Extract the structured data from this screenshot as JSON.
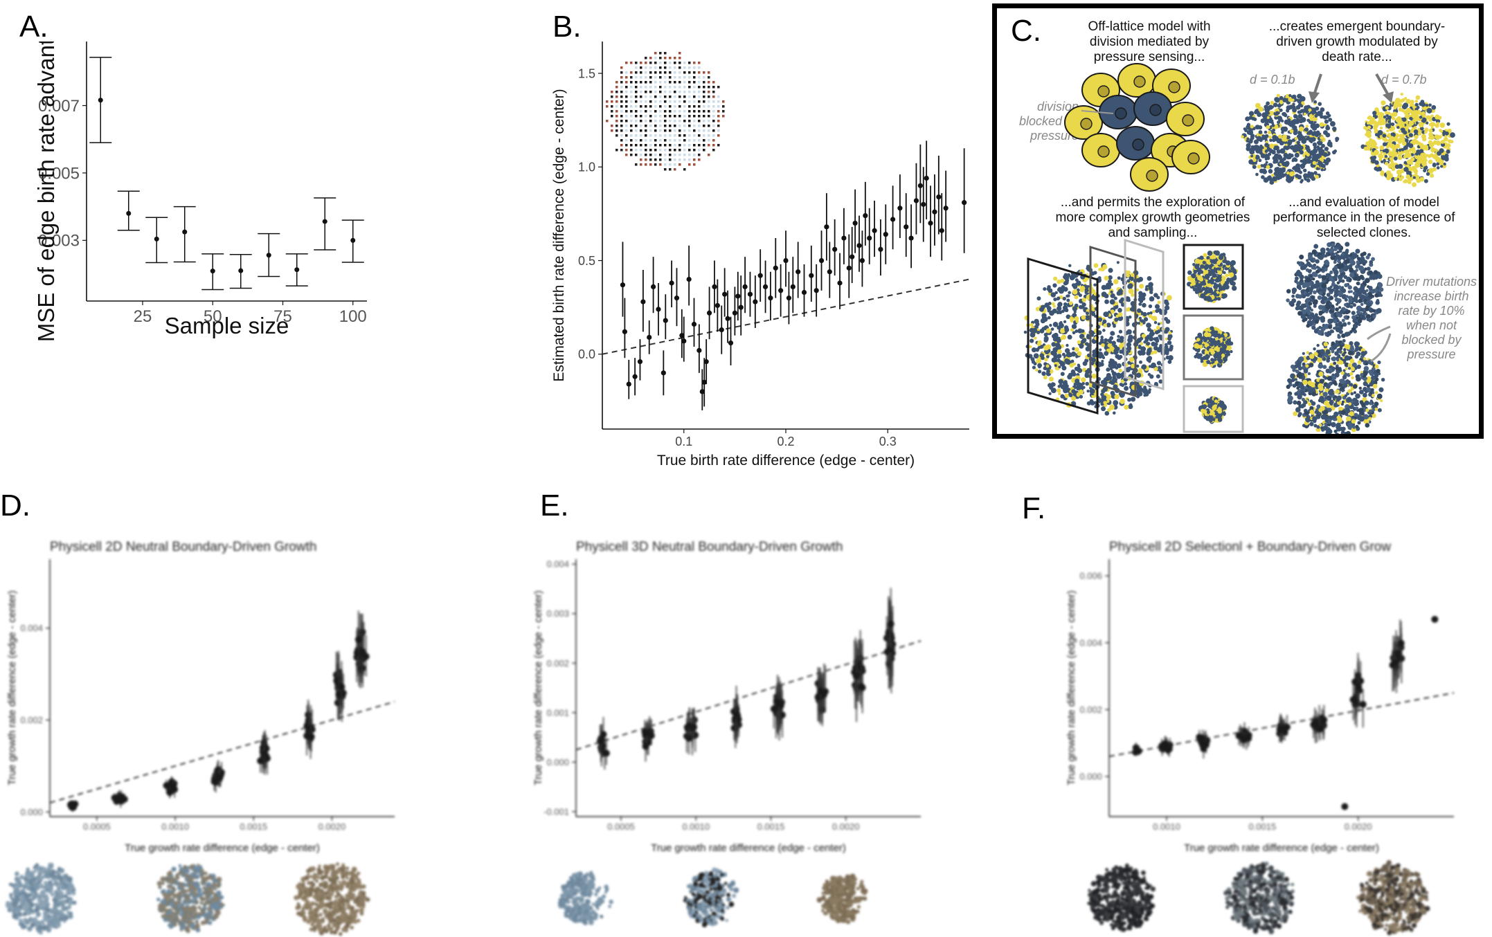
{
  "panel_labels": {
    "a": "A.",
    "b": "B.",
    "c": "C.",
    "d": "D.",
    "e": "E.",
    "f": "F."
  },
  "panel_c": {
    "t1": "Off-lattice model with division mediated by pressure sensing...",
    "t2": "...creates emergent boundary-driven growth modulated by death rate...",
    "t3": "...and permits the exploration of more complex growth geometries and sampling...",
    "t4": "...and evaluation of model performance in the presence of selected clones.",
    "division_note": "division blocked by pressure",
    "d_low": "d = 0.1b",
    "d_high": "d = 0.7b",
    "driver_note": "Driver mutations increase birth rate by 10% when not blocked by pressure",
    "colors": {
      "navy": "#3d5573",
      "yellow": "#e9d84a",
      "outline": "#1a1a1a"
    }
  },
  "chart_data": [
    {
      "panel": "A",
      "type": "scatter",
      "title": "",
      "xlabel": "Sample size",
      "ylabel": "MSE of edge birth rate advantage",
      "xlim": [
        5,
        105
      ],
      "ylim": [
        0.0012,
        0.0089
      ],
      "xticks": [
        25,
        50,
        75,
        100
      ],
      "yticks": [
        0.003,
        0.005,
        0.007
      ],
      "ytick_labels": [
        "0.003",
        "0.005",
        "0.007"
      ],
      "grid": false,
      "points": [
        {
          "x": 10,
          "y": 0.00716,
          "lo": 0.0059,
          "hi": 0.00843
        },
        {
          "x": 20,
          "y": 0.0038,
          "lo": 0.0033,
          "hi": 0.00446
        },
        {
          "x": 30,
          "y": 0.00304,
          "lo": 0.00234,
          "hi": 0.00368
        },
        {
          "x": 40,
          "y": 0.00325,
          "lo": 0.00236,
          "hi": 0.004
        },
        {
          "x": 50,
          "y": 0.00209,
          "lo": 0.00154,
          "hi": 0.0026
        },
        {
          "x": 60,
          "y": 0.0021,
          "lo": 0.00158,
          "hi": 0.00258
        },
        {
          "x": 70,
          "y": 0.00256,
          "lo": 0.00193,
          "hi": 0.0032
        },
        {
          "x": 80,
          "y": 0.00213,
          "lo": 0.00165,
          "hi": 0.0026
        },
        {
          "x": 90,
          "y": 0.00356,
          "lo": 0.00272,
          "hi": 0.00426
        },
        {
          "x": 100,
          "y": 0.003,
          "lo": 0.00235,
          "hi": 0.0036
        }
      ]
    },
    {
      "panel": "B",
      "type": "scatter",
      "title": "",
      "xlabel": "True birth rate difference (edge - center)",
      "ylabel": "Estimated birth rate difference (edge - center)",
      "xlim": [
        0.02,
        0.38
      ],
      "ylim": [
        -0.4,
        1.67
      ],
      "xticks": [
        0.1,
        0.2,
        0.3
      ],
      "yticks": [
        0.0,
        0.5,
        1.0,
        1.5
      ],
      "ytick_labels": [
        "0.0",
        "0.5",
        "1.0",
        "1.5"
      ],
      "reference_line": {
        "style": "dashed",
        "from": [
          0.02,
          0.0
        ],
        "to": [
          0.38,
          0.4
        ]
      },
      "grid": false,
      "points": [
        {
          "x": 0.04,
          "y": 0.37,
          "lo": 0.2,
          "hi": 0.6
        },
        {
          "x": 0.042,
          "y": 0.12,
          "lo": -0.02,
          "hi": 0.3
        },
        {
          "x": 0.046,
          "y": -0.16,
          "lo": -0.24,
          "hi": -0.03
        },
        {
          "x": 0.052,
          "y": -0.12,
          "lo": -0.22,
          "hi": -0.02
        },
        {
          "x": 0.057,
          "y": -0.04,
          "lo": -0.14,
          "hi": 0.08
        },
        {
          "x": 0.06,
          "y": 0.28,
          "lo": 0.12,
          "hi": 0.45
        },
        {
          "x": 0.066,
          "y": 0.09,
          "lo": 0.0,
          "hi": 0.18
        },
        {
          "x": 0.07,
          "y": 0.36,
          "lo": 0.22,
          "hi": 0.52
        },
        {
          "x": 0.075,
          "y": 0.24,
          "lo": 0.1,
          "hi": 0.38
        },
        {
          "x": 0.08,
          "y": -0.1,
          "lo": -0.22,
          "hi": 0.02
        },
        {
          "x": 0.082,
          "y": 0.18,
          "lo": 0.08,
          "hi": 0.32
        },
        {
          "x": 0.088,
          "y": 0.38,
          "lo": 0.25,
          "hi": 0.5
        },
        {
          "x": 0.093,
          "y": 0.3,
          "lo": 0.15,
          "hi": 0.46
        },
        {
          "x": 0.098,
          "y": 0.1,
          "lo": -0.02,
          "hi": 0.24
        },
        {
          "x": 0.1,
          "y": 0.07,
          "lo": -0.04,
          "hi": 0.2
        },
        {
          "x": 0.105,
          "y": 0.4,
          "lo": 0.26,
          "hi": 0.58
        },
        {
          "x": 0.11,
          "y": 0.16,
          "lo": 0.04,
          "hi": 0.3
        },
        {
          "x": 0.115,
          "y": 0.02,
          "lo": -0.1,
          "hi": 0.16
        },
        {
          "x": 0.118,
          "y": -0.2,
          "lo": -0.3,
          "hi": -0.08
        },
        {
          "x": 0.12,
          "y": -0.15,
          "lo": -0.28,
          "hi": -0.02
        },
        {
          "x": 0.122,
          "y": -0.04,
          "lo": -0.16,
          "hi": 0.08
        },
        {
          "x": 0.125,
          "y": 0.22,
          "lo": 0.08,
          "hi": 0.36
        },
        {
          "x": 0.13,
          "y": 0.36,
          "lo": 0.22,
          "hi": 0.5
        },
        {
          "x": 0.133,
          "y": 0.26,
          "lo": 0.12,
          "hi": 0.4
        },
        {
          "x": 0.137,
          "y": 0.13,
          "lo": 0.0,
          "hi": 0.26
        },
        {
          "x": 0.14,
          "y": 0.32,
          "lo": 0.2,
          "hi": 0.46
        },
        {
          "x": 0.143,
          "y": 0.19,
          "lo": 0.06,
          "hi": 0.34
        },
        {
          "x": 0.146,
          "y": 0.06,
          "lo": -0.06,
          "hi": 0.2
        },
        {
          "x": 0.15,
          "y": 0.22,
          "lo": 0.1,
          "hi": 0.36
        },
        {
          "x": 0.153,
          "y": 0.31,
          "lo": 0.18,
          "hi": 0.44
        },
        {
          "x": 0.156,
          "y": 0.25,
          "lo": 0.1,
          "hi": 0.42
        },
        {
          "x": 0.16,
          "y": 0.36,
          "lo": 0.22,
          "hi": 0.52
        },
        {
          "x": 0.165,
          "y": 0.32,
          "lo": 0.2,
          "hi": 0.44
        },
        {
          "x": 0.17,
          "y": 0.28,
          "lo": 0.14,
          "hi": 0.42
        },
        {
          "x": 0.175,
          "y": 0.42,
          "lo": 0.28,
          "hi": 0.56
        },
        {
          "x": 0.18,
          "y": 0.36,
          "lo": 0.22,
          "hi": 0.5
        },
        {
          "x": 0.185,
          "y": 0.3,
          "lo": 0.18,
          "hi": 0.44
        },
        {
          "x": 0.19,
          "y": 0.46,
          "lo": 0.3,
          "hi": 0.62
        },
        {
          "x": 0.195,
          "y": 0.34,
          "lo": 0.2,
          "hi": 0.48
        },
        {
          "x": 0.2,
          "y": 0.5,
          "lo": 0.36,
          "hi": 0.66
        },
        {
          "x": 0.203,
          "y": 0.3,
          "lo": 0.16,
          "hi": 0.44
        },
        {
          "x": 0.207,
          "y": 0.36,
          "lo": 0.22,
          "hi": 0.52
        },
        {
          "x": 0.212,
          "y": 0.44,
          "lo": 0.3,
          "hi": 0.6
        },
        {
          "x": 0.218,
          "y": 0.33,
          "lo": 0.2,
          "hi": 0.48
        },
        {
          "x": 0.225,
          "y": 0.42,
          "lo": 0.28,
          "hi": 0.58
        },
        {
          "x": 0.23,
          "y": 0.34,
          "lo": 0.2,
          "hi": 0.48
        },
        {
          "x": 0.235,
          "y": 0.5,
          "lo": 0.34,
          "hi": 0.66
        },
        {
          "x": 0.24,
          "y": 0.68,
          "lo": 0.5,
          "hi": 0.86
        },
        {
          "x": 0.243,
          "y": 0.44,
          "lo": 0.3,
          "hi": 0.6
        },
        {
          "x": 0.248,
          "y": 0.56,
          "lo": 0.42,
          "hi": 0.72
        },
        {
          "x": 0.253,
          "y": 0.38,
          "lo": 0.24,
          "hi": 0.54
        },
        {
          "x": 0.257,
          "y": 0.62,
          "lo": 0.48,
          "hi": 0.78
        },
        {
          "x": 0.262,
          "y": 0.46,
          "lo": 0.3,
          "hi": 0.64
        },
        {
          "x": 0.265,
          "y": 0.52,
          "lo": 0.38,
          "hi": 0.68
        },
        {
          "x": 0.268,
          "y": 0.7,
          "lo": 0.54,
          "hi": 0.88
        },
        {
          "x": 0.272,
          "y": 0.58,
          "lo": 0.44,
          "hi": 0.74
        },
        {
          "x": 0.275,
          "y": 0.5,
          "lo": 0.36,
          "hi": 0.66
        },
        {
          "x": 0.278,
          "y": 0.74,
          "lo": 0.58,
          "hi": 0.92
        },
        {
          "x": 0.282,
          "y": 0.62,
          "lo": 0.48,
          "hi": 0.78
        },
        {
          "x": 0.287,
          "y": 0.66,
          "lo": 0.52,
          "hi": 0.82
        },
        {
          "x": 0.293,
          "y": 0.56,
          "lo": 0.42,
          "hi": 0.72
        },
        {
          "x": 0.298,
          "y": 0.64,
          "lo": 0.48,
          "hi": 0.8
        },
        {
          "x": 0.305,
          "y": 0.72,
          "lo": 0.56,
          "hi": 0.9
        },
        {
          "x": 0.312,
          "y": 0.78,
          "lo": 0.62,
          "hi": 0.96
        },
        {
          "x": 0.318,
          "y": 0.68,
          "lo": 0.52,
          "hi": 0.86
        },
        {
          "x": 0.323,
          "y": 0.62,
          "lo": 0.46,
          "hi": 0.8
        },
        {
          "x": 0.328,
          "y": 0.82,
          "lo": 0.64,
          "hi": 1.02
        },
        {
          "x": 0.332,
          "y": 0.9,
          "lo": 0.7,
          "hi": 1.12
        },
        {
          "x": 0.335,
          "y": 0.8,
          "lo": 0.6,
          "hi": 1.0
        },
        {
          "x": 0.338,
          "y": 0.94,
          "lo": 0.72,
          "hi": 1.14
        },
        {
          "x": 0.342,
          "y": 0.7,
          "lo": 0.52,
          "hi": 0.9
        },
        {
          "x": 0.346,
          "y": 0.76,
          "lo": 0.58,
          "hi": 0.96
        },
        {
          "x": 0.35,
          "y": 0.84,
          "lo": 0.64,
          "hi": 1.06
        },
        {
          "x": 0.353,
          "y": 0.66,
          "lo": 0.5,
          "hi": 0.86
        },
        {
          "x": 0.357,
          "y": 0.78,
          "lo": 0.6,
          "hi": 0.98
        },
        {
          "x": 0.375,
          "y": 0.81,
          "lo": 0.54,
          "hi": 1.1
        }
      ]
    },
    {
      "panel": "D",
      "type": "scatter",
      "title": "Physicell 2D Neutral Boundary-Driven Growth",
      "xlabel": "True growth rate difference (edge - center)",
      "ylabel": "True growth rate difference (edge - center)",
      "xlim": [
        0.0002,
        0.0024
      ],
      "ylim": [
        -0.0001,
        0.0055
      ],
      "xticks": [
        0.0005,
        0.001,
        0.0015,
        0.002
      ],
      "xtick_labels": [
        "0.0005",
        "0.0010",
        "0.0015",
        "0.0020"
      ],
      "yticks": [
        0.0,
        0.002,
        0.004
      ],
      "ytick_labels": [
        "0.000",
        "0.002",
        "0.004"
      ],
      "reference_line": {
        "style": "dashed",
        "from": [
          0.0002,
          0.0002
        ],
        "to": [
          0.0024,
          0.0024
        ]
      },
      "clusters": [
        {
          "x": 0.00035,
          "y": 0.00015,
          "spread": 0.00012,
          "err": 8e-05,
          "n": 12
        },
        {
          "x": 0.00065,
          "y": 0.0003,
          "spread": 0.00015,
          "err": 0.00012,
          "n": 14
        },
        {
          "x": 0.00097,
          "y": 0.00055,
          "spread": 0.0002,
          "err": 0.00015,
          "n": 16
        },
        {
          "x": 0.00127,
          "y": 0.0008,
          "spread": 0.00025,
          "err": 0.0002,
          "n": 16
        },
        {
          "x": 0.00157,
          "y": 0.0012,
          "spread": 0.00035,
          "err": 0.0003,
          "n": 18
        },
        {
          "x": 0.00185,
          "y": 0.0018,
          "spread": 0.00045,
          "err": 0.0004,
          "n": 18
        },
        {
          "x": 0.00205,
          "y": 0.0027,
          "spread": 0.0006,
          "err": 0.0005,
          "n": 18
        },
        {
          "x": 0.00218,
          "y": 0.0035,
          "spread": 0.0006,
          "err": 0.0006,
          "n": 20
        }
      ]
    },
    {
      "panel": "E",
      "type": "scatter",
      "title": "Physicell 3D Neutral Boundary-Driven Growth",
      "xlabel": "True growth rate difference (edge - center)",
      "ylabel": "True growth rate difference (edge - center)",
      "xlim": [
        0.0002,
        0.0025
      ],
      "ylim": [
        -0.0011,
        0.0041
      ],
      "xticks": [
        0.0005,
        0.001,
        0.0015,
        0.002
      ],
      "xtick_labels": [
        "0.0005",
        "0.0010",
        "0.0015",
        "0.0020"
      ],
      "yticks": [
        -0.001,
        0.0,
        0.001,
        0.002,
        0.003,
        0.004
      ],
      "ytick_labels": [
        "-0.001",
        "0.000",
        "0.001",
        "0.002",
        "0.003",
        "0.004"
      ],
      "reference_line": {
        "style": "dashed",
        "from": [
          0.0002,
          0.00025
        ],
        "to": [
          0.0025,
          0.00245
        ]
      },
      "clusters": [
        {
          "x": 0.00038,
          "y": 0.00035,
          "spread": 0.0003,
          "err": 0.0003,
          "n": 12
        },
        {
          "x": 0.00067,
          "y": 0.0005,
          "spread": 0.0003,
          "err": 0.0003,
          "n": 14
        },
        {
          "x": 0.00097,
          "y": 0.0007,
          "spread": 0.0003,
          "err": 0.00035,
          "n": 16
        },
        {
          "x": 0.00127,
          "y": 0.0009,
          "spread": 0.00035,
          "err": 0.0004,
          "n": 16
        },
        {
          "x": 0.00155,
          "y": 0.0011,
          "spread": 0.0004,
          "err": 0.00045,
          "n": 18
        },
        {
          "x": 0.00183,
          "y": 0.0014,
          "spread": 0.00045,
          "err": 0.0005,
          "n": 18
        },
        {
          "x": 0.00208,
          "y": 0.0018,
          "spread": 0.00055,
          "err": 0.0006,
          "n": 18
        },
        {
          "x": 0.0023,
          "y": 0.0023,
          "spread": 0.0006,
          "err": 0.0007,
          "n": 20
        }
      ]
    },
    {
      "panel": "F",
      "type": "scatter",
      "title": "Physicell 2D Selectionl + Boundary-Driven Grow",
      "xlabel": "True growth rate difference (edge - center)",
      "ylabel": "True growth rate difference (edge - center)",
      "xlim": [
        0.0007,
        0.0025
      ],
      "ylim": [
        -0.0012,
        0.0065
      ],
      "xticks": [
        0.001,
        0.0015,
        0.002
      ],
      "xtick_labels": [
        "0.0010",
        "0.0015",
        "0.0020"
      ],
      "yticks": [
        0.0,
        0.002,
        0.004,
        0.006
      ],
      "ytick_labels": [
        "0.000",
        "0.002",
        "0.004",
        "0.006"
      ],
      "reference_line": {
        "style": "dashed",
        "from": [
          0.0007,
          0.0006
        ],
        "to": [
          0.0025,
          0.0025
        ]
      },
      "clusters": [
        {
          "x": 0.00085,
          "y": 0.0008,
          "spread": 0.0001,
          "err": 0.00015,
          "n": 4
        },
        {
          "x": 0.001,
          "y": 0.0009,
          "spread": 0.0002,
          "err": 0.0002,
          "n": 10
        },
        {
          "x": 0.0012,
          "y": 0.001,
          "spread": 0.00025,
          "err": 0.00025,
          "n": 12
        },
        {
          "x": 0.0014,
          "y": 0.0012,
          "spread": 0.0003,
          "err": 0.0003,
          "n": 12
        },
        {
          "x": 0.0016,
          "y": 0.0014,
          "spread": 0.0003,
          "err": 0.00035,
          "n": 14
        },
        {
          "x": 0.0018,
          "y": 0.0016,
          "spread": 0.0004,
          "err": 0.0004,
          "n": 14
        },
        {
          "x": 0.002,
          "y": 0.0025,
          "spread": 0.0008,
          "err": 0.0006,
          "n": 14
        },
        {
          "x": 0.0022,
          "y": 0.0036,
          "spread": 0.0009,
          "err": 0.0007,
          "n": 16
        }
      ],
      "extra_points": [
        {
          "x": 0.00193,
          "y": -0.0009
        },
        {
          "x": 0.0024,
          "y": 0.0047
        }
      ]
    }
  ]
}
